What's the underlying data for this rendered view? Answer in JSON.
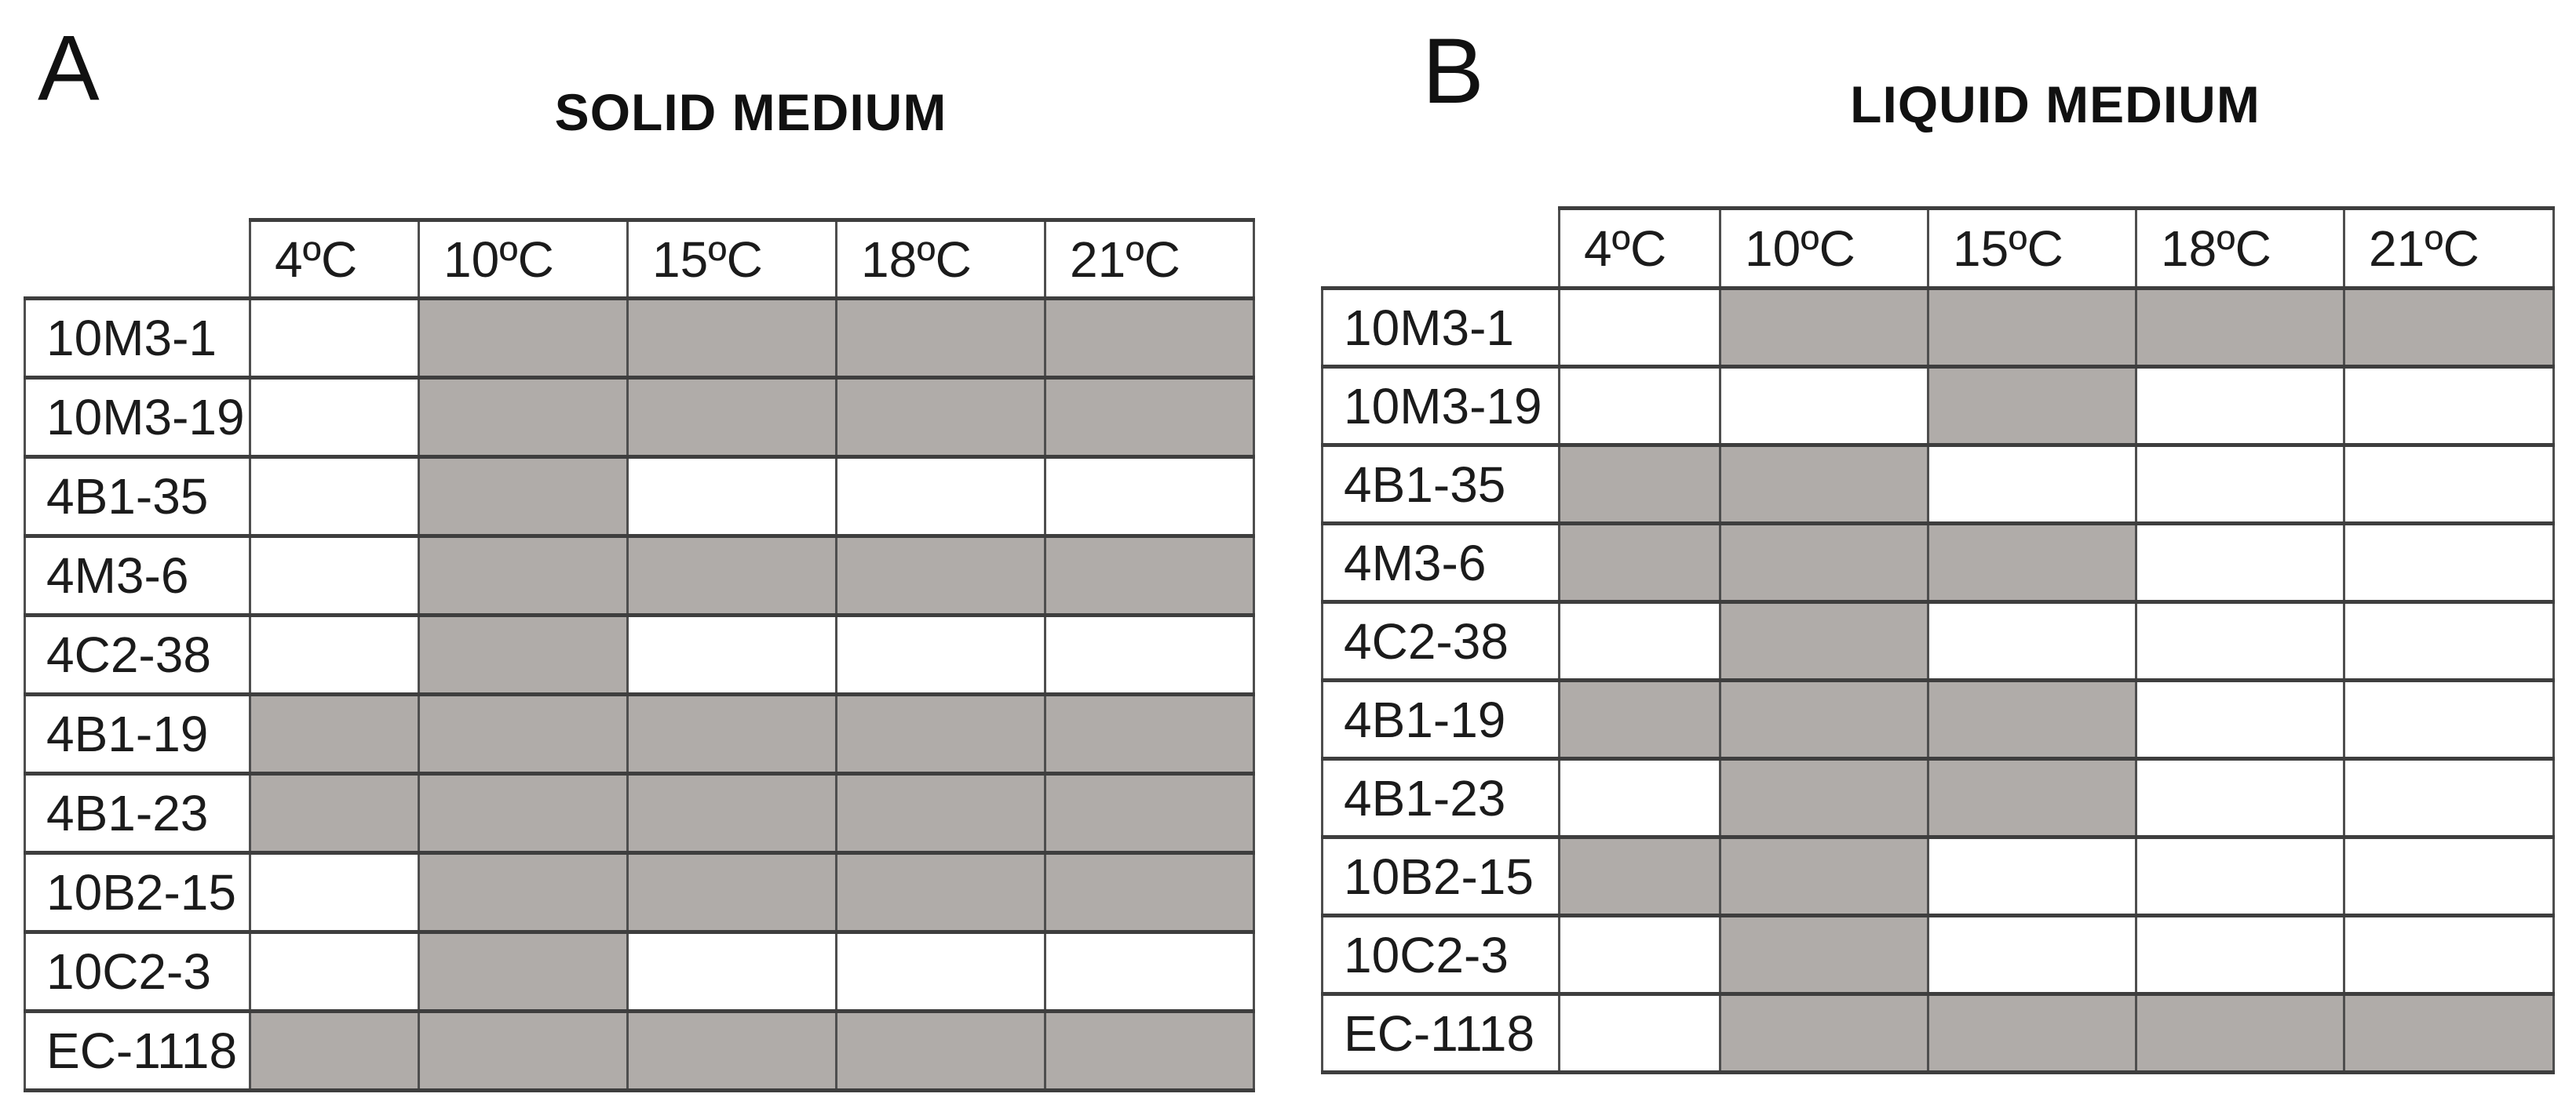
{
  "figure": {
    "colors": {
      "shaded": "#b0aca9",
      "border": "#3e3e3e"
    },
    "panels": [
      {
        "label": "A",
        "title": "SOLID MEDIUM",
        "columns": [
          "4ºC",
          "10ºC",
          "15ºC",
          "18ºC",
          "21ºC"
        ],
        "rows": [
          {
            "strain": "10M3-1",
            "growth": [
              0,
              1,
              1,
              1,
              1
            ]
          },
          {
            "strain": "10M3-19",
            "growth": [
              0,
              1,
              1,
              1,
              1
            ]
          },
          {
            "strain": "4B1-35",
            "growth": [
              0,
              1,
              0,
              0,
              0
            ]
          },
          {
            "strain": "4M3-6",
            "growth": [
              0,
              1,
              1,
              1,
              1
            ]
          },
          {
            "strain": "4C2-38",
            "growth": [
              0,
              1,
              0,
              0,
              0
            ]
          },
          {
            "strain": "4B1-19",
            "growth": [
              1,
              1,
              1,
              1,
              1
            ]
          },
          {
            "strain": "4B1-23",
            "growth": [
              1,
              1,
              1,
              1,
              1
            ]
          },
          {
            "strain": "10B2-15",
            "growth": [
              0,
              1,
              1,
              1,
              1
            ]
          },
          {
            "strain": "10C2-3",
            "growth": [
              0,
              1,
              0,
              0,
              0
            ]
          },
          {
            "strain": "EC-1118",
            "growth": [
              1,
              1,
              1,
              1,
              1
            ]
          }
        ]
      },
      {
        "label": "B",
        "title": "LIQUID MEDIUM",
        "columns": [
          "4ºC",
          "10ºC",
          "15ºC",
          "18ºC",
          "21ºC"
        ],
        "rows": [
          {
            "strain": "10M3-1",
            "growth": [
              0,
              1,
              1,
              1,
              1
            ]
          },
          {
            "strain": "10M3-19",
            "growth": [
              0,
              0,
              1,
              0,
              0
            ]
          },
          {
            "strain": "4B1-35",
            "growth": [
              1,
              1,
              0,
              0,
              0
            ]
          },
          {
            "strain": "4M3-6",
            "growth": [
              1,
              1,
              1,
              0,
              0
            ]
          },
          {
            "strain": "4C2-38",
            "growth": [
              0,
              1,
              0,
              0,
              0
            ]
          },
          {
            "strain": "4B1-19",
            "growth": [
              1,
              1,
              1,
              0,
              0
            ]
          },
          {
            "strain": "4B1-23",
            "growth": [
              0,
              1,
              1,
              0,
              0
            ]
          },
          {
            "strain": "10B2-15",
            "growth": [
              1,
              1,
              0,
              0,
              0
            ]
          },
          {
            "strain": "10C2-3",
            "growth": [
              0,
              1,
              0,
              0,
              0
            ]
          },
          {
            "strain": "EC-1118",
            "growth": [
              0,
              1,
              1,
              1,
              1
            ]
          }
        ]
      }
    ]
  }
}
